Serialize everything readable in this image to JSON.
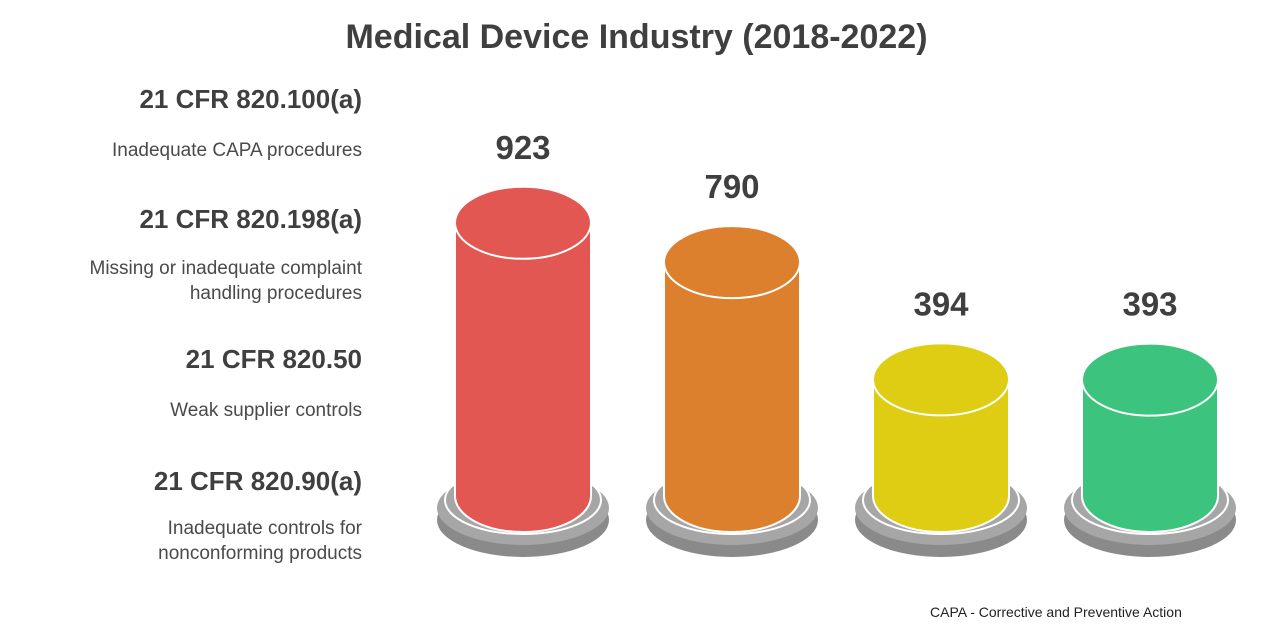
{
  "chart_data": {
    "type": "bar",
    "title": "Medical Device Industry (2018-2022)",
    "categories": [
      "21 CFR 820.100(a)",
      "21 CFR 820.198(a)",
      "21 CFR 820.50",
      "21 CFR 820.90(a)"
    ],
    "descriptions": [
      "Inadequate CAPA procedures",
      "Missing or inadequate complaint handling procedures",
      "Weak supplier controls",
      "Inadequate controls for nonconforming products"
    ],
    "values": [
      923,
      790,
      394,
      393
    ],
    "colors": [
      "#e35752",
      "#dd802d",
      "#dfcd14",
      "#3cc47f"
    ],
    "xlabel": "",
    "ylabel": "",
    "legend_placement": "left",
    "grid": false
  },
  "footnote": "CAPA - Corrective and Preventive Action"
}
